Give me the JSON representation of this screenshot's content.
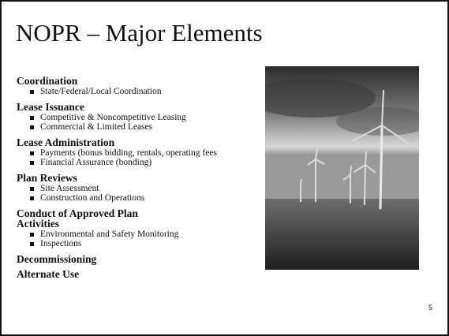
{
  "title": "NOPR – Major Elements",
  "sections": [
    {
      "heading": "Coordination",
      "bullets": [
        "State/Federal/Local Coordination"
      ]
    },
    {
      "heading": "Lease Issuance",
      "bullets": [
        "Competitive & Noncompetitive Leasing",
        "Commercial & Limited Leases"
      ]
    },
    {
      "heading": "Lease Administration",
      "bullets": [
        "Payments (bonus bidding, rentals, operating fees",
        "Financial Assurance (bonding)"
      ]
    },
    {
      "heading": "Plan Reviews",
      "bullets": [
        "Site Assessment",
        "Construction and Operations"
      ]
    },
    {
      "heading": "Conduct of Approved Plan Activities",
      "bullets": [
        "Environmental and Safety Monitoring",
        "Inspections"
      ]
    },
    {
      "heading": "Decommissioning",
      "bullets": []
    },
    {
      "heading": "Alternate Use",
      "bullets": []
    }
  ],
  "page_number": "5"
}
